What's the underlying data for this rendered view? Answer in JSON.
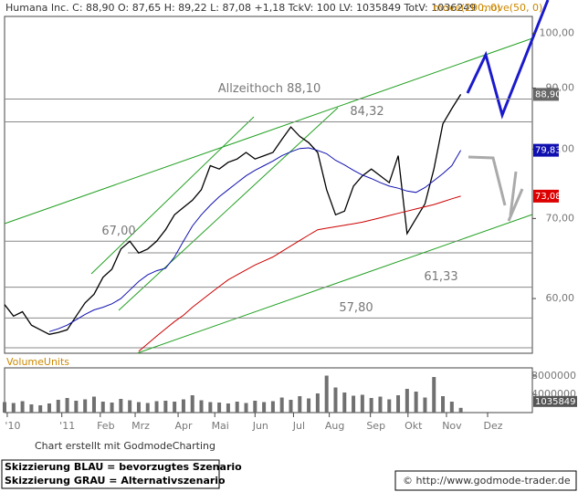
{
  "chart_data": [
    {
      "type": "line",
      "quote": "C: 88,90 O: 87,65 H: 89,22 L: 87,08 +1,18 TckV: 100 LV: 1035849 TotV: 1036249",
      "log_scale": true,
      "xlim": [
        0,
        59
      ],
      "xticks": [
        {
          "value": 0.3,
          "label": "'10"
        },
        {
          "value": 6.4,
          "label": "'11"
        },
        {
          "value": 10.7,
          "label": "Feb"
        },
        {
          "value": 14.6,
          "label": "Mrz"
        },
        {
          "value": 19.4,
          "label": "Apr"
        },
        {
          "value": 23.5,
          "label": "Mai"
        },
        {
          "value": 28,
          "label": "Jun"
        },
        {
          "value": 32.3,
          "label": "Jul"
        },
        {
          "value": 36.3,
          "label": "Aug"
        },
        {
          "value": 40.9,
          "label": "Sep"
        },
        {
          "value": 45.1,
          "label": "Okt"
        },
        {
          "value": 49.4,
          "label": "Nov"
        },
        {
          "value": 54,
          "label": "Dez"
        }
      ],
      "ylim": [
        54,
        103.3
      ],
      "yticks": [
        {
          "value": 60,
          "label": "60,00"
        },
        {
          "value": 70,
          "label": "70,00"
        },
        {
          "value": 80,
          "label": "80,00"
        },
        {
          "value": 90,
          "label": "90,00"
        },
        {
          "value": 100,
          "label": "100,00"
        }
      ],
      "series": [
        {
          "name": "Humana Inc.",
          "color": "#000000",
          "values": [
            59.3,
            58,
            58.5,
            57,
            56.5,
            56,
            56.2,
            56.5,
            58,
            59.5,
            60.5,
            62.5,
            63.5,
            66,
            67,
            65.5,
            66,
            67,
            68.5,
            70.5,
            71.5,
            72.5,
            74,
            77.5,
            77,
            78,
            78.5,
            79.5,
            78.5,
            79,
            79.5,
            81.5,
            83.5,
            82,
            81,
            79.5,
            74,
            70.5,
            71,
            74.5,
            76,
            77,
            76,
            75,
            79,
            68,
            70,
            72,
            77,
            84,
            86.5,
            88.9
          ]
        },
        {
          "name": "move(200, 0)",
          "color": "#cc0000",
          "values": [
            null,
            null,
            null,
            null,
            null,
            null,
            null,
            null,
            null,
            null,
            null,
            null,
            null,
            null,
            null,
            54.2,
            55,
            55.8,
            56.6,
            57.4,
            58.1,
            59,
            59.8,
            60.6,
            61.4,
            62.2,
            62.8,
            63.4,
            64,
            64.5,
            65,
            65.7,
            66.4,
            67.1,
            67.8,
            68.5,
            68.7,
            68.9,
            69.1,
            69.3,
            69.5,
            69.8,
            70.1,
            70.4,
            70.7,
            71,
            71.3,
            71.6,
            71.9,
            72.3,
            72.7,
            73.08
          ]
        },
        {
          "name": "move(50, 0)",
          "color": "#1010b0",
          "values": [
            null,
            null,
            null,
            null,
            null,
            56.3,
            56.6,
            57,
            57.6,
            58.2,
            58.7,
            59,
            59.4,
            60,
            61,
            62,
            62.8,
            63.3,
            63.6,
            65,
            67,
            69,
            70.5,
            71.8,
            73,
            74,
            75,
            76,
            76.8,
            77.5,
            78.2,
            79,
            79.6,
            80.1,
            80.2,
            79.8,
            79.3,
            78.3,
            77.6,
            76.8,
            76.1,
            75.6,
            75,
            74.5,
            74.2,
            73.8,
            73.6,
            74.3,
            75.3,
            76.3,
            77.5,
            79.83
          ]
        }
      ],
      "price_tags": [
        {
          "value": 88.9,
          "label": "88,90",
          "color": "#666666"
        },
        {
          "value": 79.83,
          "label": "79,83",
          "color": "#1010b0"
        },
        {
          "value": 73.08,
          "label": "73,08",
          "color": "#dd0000"
        }
      ],
      "levels": [
        {
          "value": 88.1,
          "label": "Allzeithoch  88,10"
        },
        {
          "value": 84.32,
          "label": "84,32"
        },
        {
          "value": 67,
          "label": "67,00"
        },
        {
          "value": 61.33,
          "label": "61,33"
        },
        {
          "value": 57.8,
          "label": "57,80"
        }
      ]
    },
    {
      "type": "bar",
      "title": "VolumeUnits",
      "color": "#707070",
      "xlim": [
        0,
        59
      ],
      "ylim": [
        0,
        9800000
      ],
      "yticks": [
        4000000,
        8000000
      ],
      "values": [
        2300000,
        2100000,
        2500000,
        1800000,
        1600000,
        2000000,
        2800000,
        3200000,
        2600000,
        2900000,
        3500000,
        2400000,
        2200000,
        3000000,
        2700000,
        2300000,
        2100000,
        2500000,
        2600000,
        2400000,
        2900000,
        3800000,
        2700000,
        2300000,
        2200000,
        2000000,
        2400000,
        2100000,
        2600000,
        2300000,
        2500000,
        3300000,
        2800000,
        3600000,
        3100000,
        4200000,
        8100000,
        5500000,
        4400000,
        3700000,
        3900000,
        3200000,
        3500000,
        2900000,
        3800000,
        5200000,
        4600000,
        3300000,
        7800000,
        3600000,
        2400000,
        1035849
      ],
      "last_value": 1035849
    }
  ],
  "footer": {
    "credit": "Chart erstellt mit GodmodeCharting",
    "note_blue": "Skizzierung BLAU = bevorzugtes Szenario",
    "note_gray": "Skizzierung GRAU = Alternativszenario",
    "url": "© http://www.godmode-trader.de"
  }
}
